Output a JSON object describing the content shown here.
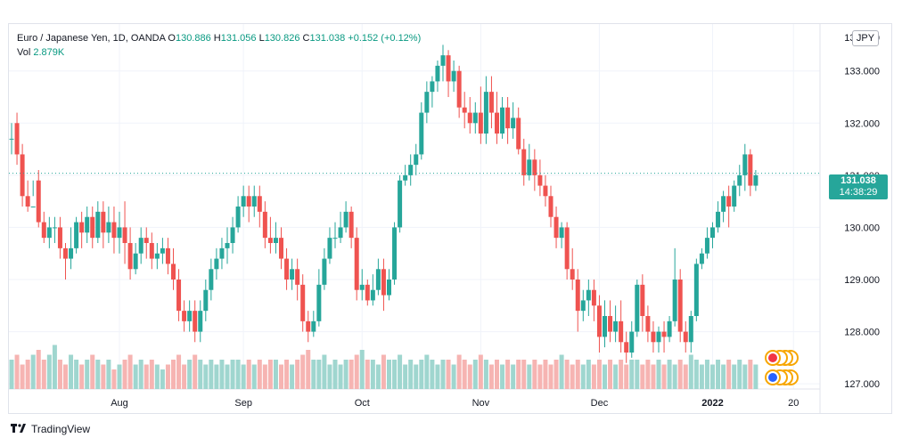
{
  "legend": {
    "symbol": "Euro / Japanese Yen, 1D, OANDA",
    "o_label": "O",
    "o_value": "130.886",
    "h_label": "H",
    "h_value": "131.056",
    "l_label": "L",
    "l_value": "130.826",
    "c_label": "C",
    "c_value": "131.038",
    "change": "+0.152 (+0.12%)",
    "vol_label": "Vol",
    "vol_value": "2.879K"
  },
  "currency_badge": "JPY",
  "last_price": {
    "price": "131.038",
    "countdown": "14:38:29"
  },
  "footer": {
    "brand": "TradingView",
    "logo_icon": "tradingview-logo-icon"
  },
  "colors": {
    "up": "#26a69a",
    "down": "#ef5350",
    "up_volume": "#9fd6cf",
    "down_volume": "#f6b4b2"
  },
  "chart_data": {
    "type": "candlestick",
    "y_ticks": [
      "127.000",
      "128.000",
      "129.000",
      "130.000",
      "131.000",
      "132.000",
      "133.000",
      "134.000"
    ],
    "ylim": [
      126.9,
      133.9
    ],
    "x_ticks": [
      {
        "label": "Aug",
        "index": 20
      },
      {
        "label": "Sep",
        "index": 43
      },
      {
        "label": "Oct",
        "index": 65
      },
      {
        "label": "Nov",
        "index": 87
      },
      {
        "label": "Dec",
        "index": 109
      },
      {
        "label": "2022",
        "index": 130
      },
      {
        "label": "20",
        "index": 145
      }
    ],
    "candles": [
      [
        131.7,
        132.0,
        131.7,
        131.4,
        0.6
      ],
      [
        132.0,
        132.2,
        131.4,
        131.2,
        0.7
      ],
      [
        131.4,
        131.6,
        130.6,
        130.4,
        0.5
      ],
      [
        130.6,
        130.9,
        130.4,
        130.3,
        0.6
      ],
      [
        130.4,
        130.9,
        130.4,
        130.6,
        0.7
      ],
      [
        130.9,
        131.1,
        130.1,
        130.0,
        0.8
      ],
      [
        130.1,
        130.3,
        129.8,
        129.7,
        0.6
      ],
      [
        129.8,
        130.2,
        130.0,
        129.6,
        0.7
      ],
      [
        130.0,
        130.2,
        130.0,
        129.7,
        0.9
      ],
      [
        130.0,
        130.2,
        129.6,
        129.4,
        0.6
      ],
      [
        129.6,
        129.7,
        129.4,
        129.0,
        0.5
      ],
      [
        129.4,
        130.0,
        129.6,
        129.2,
        0.7
      ],
      [
        129.6,
        130.2,
        130.1,
        129.5,
        0.6
      ],
      [
        130.1,
        130.3,
        129.9,
        129.6,
        0.5
      ],
      [
        129.9,
        130.4,
        130.2,
        129.7,
        0.6
      ],
      [
        130.2,
        130.4,
        129.8,
        129.6,
        0.7
      ],
      [
        129.8,
        130.5,
        130.3,
        129.7,
        0.6
      ],
      [
        130.3,
        130.5,
        129.9,
        129.6,
        0.5
      ],
      [
        129.9,
        130.4,
        130.1,
        129.7,
        0.6
      ],
      [
        130.1,
        130.4,
        129.8,
        129.5,
        0.4
      ],
      [
        129.8,
        130.3,
        130.0,
        129.5,
        0.5
      ],
      [
        130.0,
        130.5,
        129.7,
        129.3,
        0.6
      ],
      [
        129.7,
        130.0,
        129.2,
        129.0,
        0.7
      ],
      [
        129.2,
        129.7,
        129.5,
        129.1,
        0.5
      ],
      [
        129.5,
        130.0,
        129.8,
        129.3,
        0.6
      ],
      [
        129.8,
        130.0,
        129.7,
        129.4,
        0.5
      ],
      [
        129.7,
        129.9,
        129.4,
        129.2,
        0.6
      ],
      [
        129.4,
        129.7,
        129.5,
        129.2,
        0.5
      ],
      [
        129.5,
        129.8,
        129.6,
        129.3,
        0.4
      ],
      [
        129.6,
        129.8,
        129.3,
        129.1,
        0.5
      ],
      [
        129.3,
        129.6,
        129.0,
        128.8,
        0.6
      ],
      [
        129.0,
        129.2,
        128.4,
        128.2,
        0.7
      ],
      [
        128.4,
        128.6,
        128.2,
        128.0,
        0.5
      ],
      [
        128.2,
        128.6,
        128.4,
        128.0,
        0.6
      ],
      [
        128.4,
        128.6,
        128.0,
        127.8,
        0.7
      ],
      [
        128.0,
        128.6,
        128.4,
        127.8,
        0.6
      ],
      [
        128.4,
        129.0,
        128.8,
        128.2,
        0.5
      ],
      [
        128.8,
        129.4,
        129.2,
        128.6,
        0.6
      ],
      [
        129.2,
        129.6,
        129.4,
        129.0,
        0.5
      ],
      [
        129.4,
        129.8,
        129.6,
        129.2,
        0.6
      ],
      [
        129.6,
        130.0,
        129.7,
        129.3,
        0.5
      ],
      [
        129.7,
        130.2,
        130.0,
        129.5,
        0.6
      ],
      [
        130.0,
        130.6,
        130.4,
        129.9,
        0.6
      ],
      [
        130.4,
        130.8,
        130.6,
        130.2,
        0.5
      ],
      [
        130.6,
        130.8,
        130.4,
        130.1,
        0.6
      ],
      [
        130.4,
        130.8,
        130.6,
        130.2,
        0.5
      ],
      [
        130.6,
        130.8,
        130.3,
        130.0,
        0.6
      ],
      [
        130.3,
        130.5,
        129.8,
        129.6,
        0.5
      ],
      [
        129.8,
        130.2,
        129.7,
        129.5,
        0.6
      ],
      [
        129.7,
        130.1,
        129.8,
        129.5,
        0.6
      ],
      [
        129.8,
        130.0,
        129.4,
        129.2,
        0.5
      ],
      [
        129.4,
        129.6,
        129.0,
        128.8,
        0.6
      ],
      [
        129.0,
        129.4,
        129.2,
        128.8,
        0.5
      ],
      [
        129.2,
        129.4,
        128.9,
        128.6,
        0.6
      ],
      [
        128.9,
        129.1,
        128.2,
        128.0,
        0.7
      ],
      [
        128.2,
        128.4,
        128.0,
        127.8,
        0.8
      ],
      [
        128.0,
        128.4,
        128.2,
        127.9,
        0.6
      ],
      [
        128.2,
        129.2,
        128.9,
        128.1,
        0.6
      ],
      [
        128.9,
        129.6,
        129.4,
        128.8,
        0.7
      ],
      [
        129.4,
        130.0,
        129.8,
        129.3,
        0.5
      ],
      [
        129.8,
        130.1,
        129.8,
        129.6,
        0.6
      ],
      [
        129.8,
        130.3,
        130.0,
        129.7,
        0.5
      ],
      [
        130.0,
        130.5,
        130.3,
        129.9,
        0.6
      ],
      [
        130.3,
        130.4,
        129.8,
        129.6,
        0.6
      ],
      [
        129.8,
        130.0,
        128.8,
        128.6,
        0.7
      ],
      [
        128.8,
        129.2,
        128.9,
        128.6,
        0.8
      ],
      [
        128.9,
        129.0,
        128.6,
        128.5,
        0.6
      ],
      [
        128.6,
        129.1,
        128.8,
        128.5,
        0.6
      ],
      [
        128.8,
        129.4,
        129.2,
        128.7,
        0.5
      ],
      [
        129.2,
        129.4,
        128.7,
        128.4,
        0.7
      ],
      [
        128.7,
        129.2,
        129.0,
        128.6,
        0.6
      ],
      [
        129.0,
        130.1,
        130.0,
        128.9,
        0.6
      ],
      [
        130.0,
        131.0,
        130.9,
        129.9,
        0.7
      ],
      [
        130.9,
        131.2,
        131.0,
        130.8,
        0.5
      ],
      [
        131.0,
        131.4,
        131.2,
        130.8,
        0.6
      ],
      [
        131.2,
        131.6,
        131.4,
        131.0,
        0.5
      ],
      [
        131.4,
        132.4,
        132.2,
        131.3,
        0.6
      ],
      [
        132.2,
        132.8,
        132.6,
        132.0,
        0.7
      ],
      [
        132.6,
        132.9,
        132.8,
        132.3,
        0.6
      ],
      [
        132.8,
        133.2,
        133.1,
        132.6,
        0.5
      ],
      [
        133.1,
        133.5,
        133.3,
        132.8,
        0.6
      ],
      [
        133.3,
        133.4,
        132.8,
        132.5,
        0.6
      ],
      [
        132.8,
        133.2,
        133.0,
        132.6,
        0.5
      ],
      [
        133.0,
        133.1,
        132.3,
        132.1,
        0.7
      ],
      [
        132.3,
        132.6,
        132.2,
        131.9,
        0.6
      ],
      [
        132.2,
        132.5,
        132.0,
        131.8,
        0.5
      ],
      [
        132.0,
        132.4,
        132.2,
        131.8,
        0.6
      ],
      [
        132.2,
        132.7,
        131.8,
        131.6,
        0.7
      ],
      [
        131.8,
        132.9,
        132.6,
        131.6,
        0.6
      ],
      [
        132.6,
        132.9,
        132.2,
        131.9,
        0.5
      ],
      [
        132.2,
        132.6,
        131.8,
        131.6,
        0.6
      ],
      [
        131.8,
        132.5,
        132.3,
        131.7,
        0.5
      ],
      [
        132.3,
        132.5,
        131.9,
        131.6,
        0.6
      ],
      [
        131.9,
        132.4,
        132.1,
        131.7,
        0.5
      ],
      [
        132.1,
        132.3,
        131.5,
        131.4,
        0.6
      ],
      [
        131.5,
        131.7,
        131.0,
        130.8,
        0.6
      ],
      [
        131.0,
        131.6,
        131.3,
        130.9,
        0.5
      ],
      [
        131.3,
        131.5,
        131.0,
        130.7,
        0.6
      ],
      [
        131.0,
        131.3,
        130.8,
        130.6,
        0.5
      ],
      [
        130.8,
        131.0,
        130.6,
        130.4,
        0.6
      ],
      [
        130.6,
        130.8,
        130.2,
        130.0,
        0.5
      ],
      [
        130.2,
        130.4,
        129.8,
        129.6,
        0.6
      ],
      [
        129.8,
        130.1,
        130.0,
        129.6,
        0.7
      ],
      [
        130.0,
        130.1,
        129.2,
        129.0,
        0.6
      ],
      [
        129.2,
        129.6,
        129.0,
        128.8,
        0.5
      ],
      [
        129.0,
        129.2,
        128.4,
        128.0,
        0.6
      ],
      [
        128.4,
        128.8,
        128.6,
        128.2,
        0.5
      ],
      [
        128.6,
        129.0,
        128.8,
        128.3,
        0.6
      ],
      [
        128.8,
        129.0,
        128.5,
        128.2,
        0.5
      ],
      [
        128.5,
        128.7,
        127.9,
        127.6,
        0.6
      ],
      [
        127.9,
        128.6,
        128.3,
        127.7,
        0.5
      ],
      [
        128.3,
        128.6,
        128.0,
        127.8,
        0.6
      ],
      [
        128.0,
        128.5,
        128.2,
        127.8,
        0.5
      ],
      [
        128.2,
        128.6,
        127.8,
        127.6,
        0.6
      ],
      [
        127.8,
        128.0,
        127.6,
        127.4,
        0.5
      ],
      [
        127.6,
        128.2,
        128.0,
        127.5,
        0.6
      ],
      [
        128.0,
        129.0,
        128.9,
        127.9,
        0.6
      ],
      [
        128.9,
        129.1,
        128.3,
        128.0,
        0.5
      ],
      [
        128.3,
        128.5,
        128.0,
        127.8,
        0.6
      ],
      [
        128.0,
        128.2,
        127.8,
        127.6,
        0.5
      ],
      [
        127.8,
        128.1,
        128.0,
        127.6,
        0.6
      ],
      [
        128.0,
        128.2,
        127.9,
        127.6,
        0.5
      ],
      [
        127.9,
        128.3,
        128.2,
        127.8,
        0.6
      ],
      [
        128.2,
        129.6,
        129.0,
        128.1,
        0.5
      ],
      [
        129.0,
        129.2,
        128.0,
        127.8,
        0.6
      ],
      [
        128.0,
        128.2,
        127.8,
        127.6,
        0.5
      ],
      [
        127.8,
        128.4,
        128.3,
        127.6,
        0.7
      ],
      [
        128.3,
        129.4,
        129.3,
        128.2,
        0.6
      ],
      [
        129.3,
        129.6,
        129.5,
        129.2,
        0.5
      ],
      [
        129.5,
        130.0,
        129.8,
        129.4,
        0.6
      ],
      [
        129.8,
        130.1,
        130.0,
        129.6,
        0.5
      ],
      [
        130.0,
        130.5,
        130.3,
        129.9,
        0.6
      ],
      [
        130.3,
        130.7,
        130.6,
        130.1,
        0.5
      ],
      [
        130.6,
        130.8,
        130.4,
        130.0,
        0.6
      ],
      [
        130.4,
        130.9,
        130.8,
        130.3,
        0.5
      ],
      [
        130.8,
        131.2,
        131.0,
        130.6,
        0.6
      ],
      [
        131.0,
        131.6,
        131.4,
        130.7,
        0.5
      ],
      [
        131.4,
        131.5,
        130.8,
        130.6,
        0.6
      ],
      [
        130.8,
        131.1,
        131.0,
        130.7,
        0.5
      ]
    ]
  }
}
